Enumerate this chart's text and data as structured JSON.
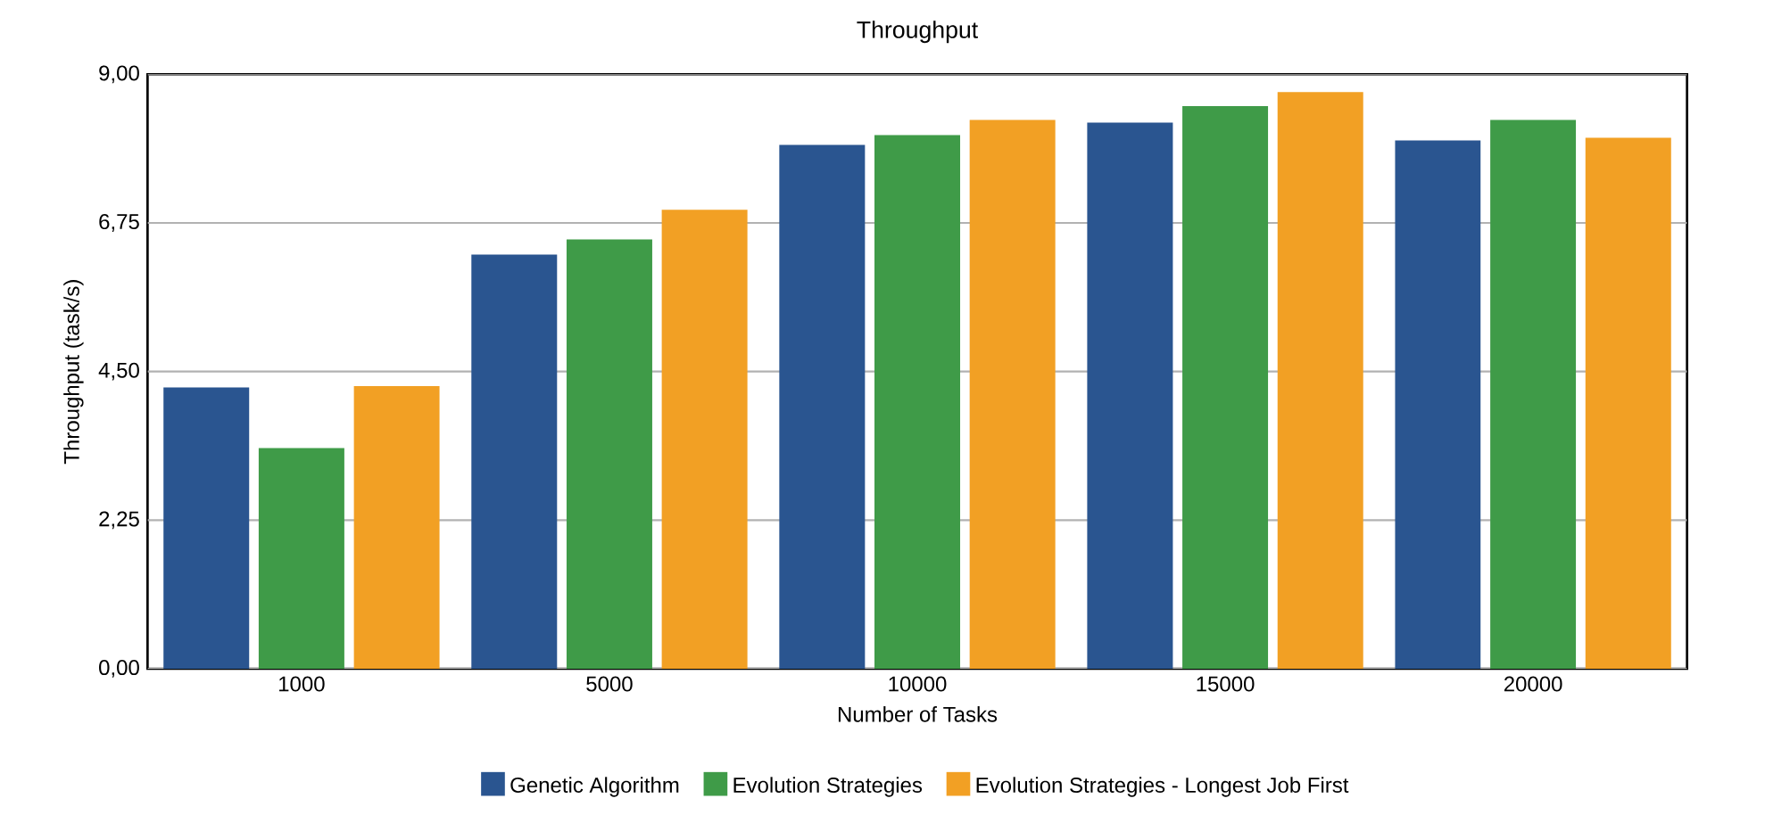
{
  "chart_data": {
    "type": "bar",
    "title": "Throughput",
    "xlabel": "Number of Tasks",
    "ylabel": "Throughput (task/s)",
    "categories": [
      "1000",
      "5000",
      "10000",
      "15000",
      "20000"
    ],
    "series": [
      {
        "name": "Genetic Algorithm",
        "color": "#2a5590",
        "values": [
          4.26,
          6.27,
          7.93,
          8.27,
          8.0
        ]
      },
      {
        "name": "Evolution Strategies",
        "color": "#3f9b48",
        "values": [
          3.34,
          6.5,
          8.08,
          8.52,
          8.31
        ]
      },
      {
        "name": "Evolution Strategies - Longest Job First",
        "color": "#f2a024",
        "values": [
          4.28,
          6.95,
          8.31,
          8.73,
          8.04
        ]
      }
    ],
    "ylim": [
      0,
      9
    ],
    "yticks": [
      {
        "value": 0,
        "label": "0,00"
      },
      {
        "value": 2.25,
        "label": "2,25"
      },
      {
        "value": 4.5,
        "label": "4,50"
      },
      {
        "value": 6.75,
        "label": "6,75"
      },
      {
        "value": 9,
        "label": "9,00"
      }
    ],
    "grid": "y",
    "legend": "bottom"
  }
}
